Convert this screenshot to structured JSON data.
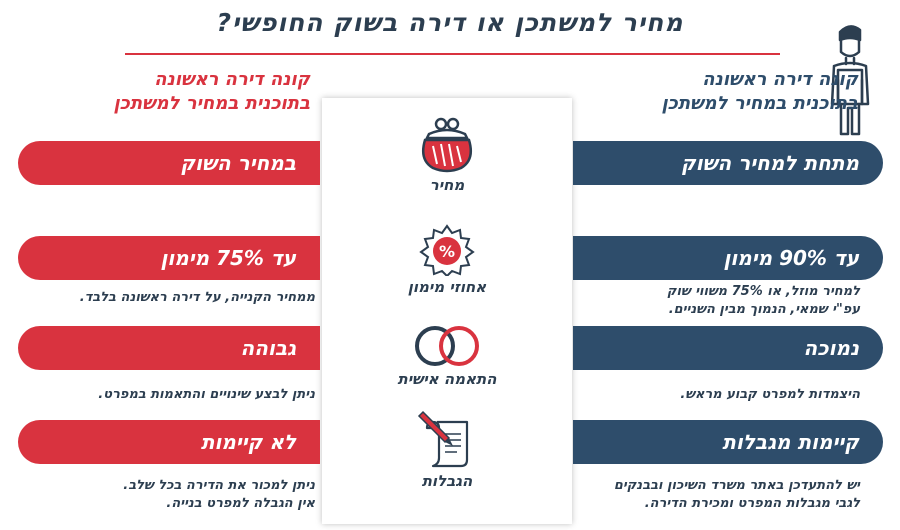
{
  "title": "מחיר למשתכן או דירה בשוק החופשי?",
  "columns": {
    "right": {
      "heading_line1": "קונה דירה ראשונה",
      "heading_line2": "בתוכנית במחיר למשתכן",
      "color": "#2e4d6b"
    },
    "left": {
      "heading_line1": "קונה דירה ראשונה",
      "heading_line2": "בתוכנית במחיר למשתכן",
      "color": "#d9333f"
    }
  },
  "categories": [
    {
      "label": "מחיר",
      "icon": "purse-icon",
      "right": {
        "pill": "מתחת למחיר השוק",
        "note_line1": "",
        "note_line2": ""
      },
      "left": {
        "pill": "במחיר השוק",
        "note_line1": "",
        "note_line2": ""
      }
    },
    {
      "label": "אחוזי מימון",
      "icon": "percent-badge-icon",
      "right": {
        "pill": "עד 90% מימון",
        "note_line1": "למחיר מוזל, או 75% משווי שוק",
        "note_line2": "עפ\"י שמאי, הנמוך מבין השניים."
      },
      "left": {
        "pill": "עד 75% מימון",
        "note_line1": "ממחיר הקנייה, על דירה ראשונה בלבד.",
        "note_line2": ""
      }
    },
    {
      "label": "התאמה אישית",
      "icon": "rings-icon",
      "right": {
        "pill": "נמוכה",
        "note_line1": "היצמדות למפרט קבוע מראש.",
        "note_line2": ""
      },
      "left": {
        "pill": "גבוהה",
        "note_line1": "ניתן לבצע שינויים והתאמות במפרט.",
        "note_line2": ""
      }
    },
    {
      "label": "הגבלות",
      "icon": "scroll-pen-icon",
      "right": {
        "pill": "קיימות מגבלות",
        "note_line1": "יש להתעדכן באתר משרד השיכון ובבנקים",
        "note_line2": "לגבי מגבלות המפרט ומכירת הדירה."
      },
      "left": {
        "pill": "לא קיימות",
        "note_line1": "ניתן למכור את הדירה בכל שלב.",
        "note_line2": "אין הגבלה למפרט בנייה."
      }
    }
  ],
  "accent_red": "#d9333f",
  "accent_blue": "#2e4d6b"
}
